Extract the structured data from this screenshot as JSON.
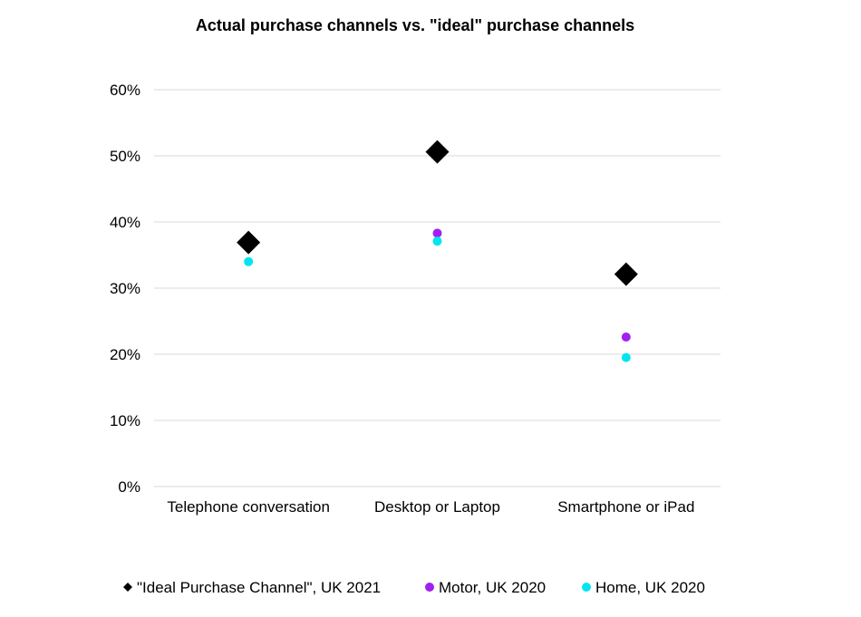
{
  "chart_data": {
    "type": "scatter",
    "title": "Actual purchase channels vs. \"ideal\" purchase channels",
    "xlabel": "",
    "ylabel": "",
    "categories": [
      "Telephone conversation",
      "Desktop or Laptop",
      "Smartphone or iPad"
    ],
    "ylim": [
      0,
      60
    ],
    "y_ticks": [
      "0%",
      "10%",
      "20%",
      "30%",
      "40%",
      "50%",
      "60%"
    ],
    "y_unit": "%",
    "grid": true,
    "legend_position": "bottom",
    "series": [
      {
        "name": "\"Ideal Purchase Channel\", UK 2021",
        "marker": "diamond",
        "color": "#000000",
        "values": [
          36.9,
          50.6,
          32.1
        ]
      },
      {
        "name": "Motor, UK 2020",
        "marker": "circle",
        "color": "#a020f0",
        "values": [
          37.5,
          38.3,
          22.6
        ]
      },
      {
        "name": "Home, UK 2020",
        "marker": "circle",
        "color": "#00e5ee",
        "values": [
          34.0,
          37.1,
          19.5
        ]
      }
    ]
  }
}
